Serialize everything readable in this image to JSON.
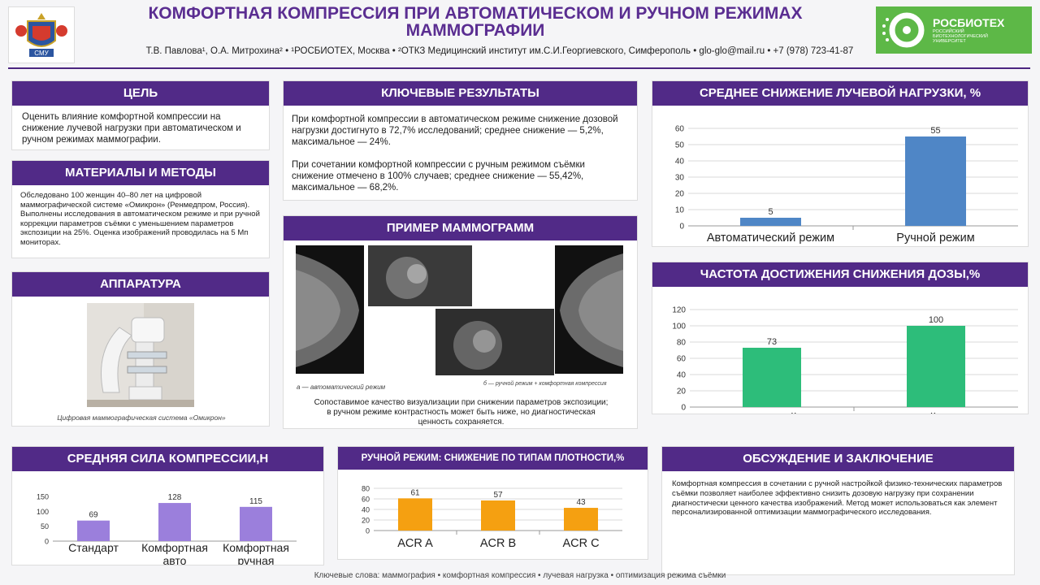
{
  "header": {
    "logo_left_text": "СМУ",
    "title_line1": "КОМФОРТНАЯ КОМПРЕССИЯ ПРИ АВТОМАТИЧЕСКОМ И РУЧНОМ РЕЖИМАХ",
    "title_line2": "МАММОГРАФИИ",
    "authors": "Т.В. Павлова¹, О.А. Митрохина² • ¹РОСБИОТЕХ, Москва • ²ОТКЗ Медицинский институт им.С.И.Георгиевского, Симферополь • glo-glo@mail.ru • +7 (978) 723-41-87",
    "logo_right_name": "РОСБИОТЕХ",
    "logo_right_sub": "РОССИЙСКИЙ БИОТЕХНОЛОГИЧЕСКИЙ УНИВЕРСИТЕТ"
  },
  "goal": {
    "title": "ЦЕЛЬ",
    "text": "Оценить влияние комфортной компрессии на снижение лучевой нагрузки при автоматическом и ручном режимах маммографии."
  },
  "methods": {
    "title": "МАТЕРИАЛЫ И МЕТОДЫ",
    "text": "Обследовано 100 женщин 40–80 лет на цифровой маммографической системе «Омикрон» (Ренмедпром, Россия). Выполнены исследования в автоматическом режиме и при ручной коррекции параметров съёмки с уменьшением параметров экспозиции на 25%. Оценка изображений проводилась на 5 Мп мониторах."
  },
  "equipment": {
    "title": "АППАРАТУРА",
    "caption": "Цифровая маммографическая система «Омикрон»"
  },
  "results": {
    "title": "КЛЮЧЕВЫЕ РЕЗУЛЬТАТЫ",
    "p1": "При комфортной компрессии в автоматическом режиме снижение дозовой нагрузки достигнуто в 72,7% исследований; среднее снижение — 5,2%, максимальное — 24%.",
    "p2": "При сочетании комфортной компрессии с ручным режимом съёмки снижение отмечено в 100% случаев; среднее снижение — 55,42%, максимальное — 68,2%."
  },
  "mammograms": {
    "title": "ПРИМЕР МАММОГРАММ",
    "caption_a": "а — автоматический режим",
    "caption_b": "б — ручной режим + комфортная компрессия",
    "note_line1": "Сопоставимое качество визуализации при снижении параметров экспозиции;",
    "note_line2": "в ручном режиме контрастность может быть ниже, но диагностическая",
    "note_line3": "ценность сохраняется."
  },
  "discussion": {
    "title": "ОБСУЖДЕНИЕ И ЗАКЛЮЧЕНИЕ",
    "text": "Комфортная компрессия в сочетании с ручной настройкой физико-технических параметров съёмки позволяет наиболее эффективно снизить дозовую нагрузку при сохранении диагностически ценного качества изображений. Метод может использоваться как элемент персонализированной оптимизации маммографического исследования."
  },
  "footer": "Ключевые слова: маммография • комфортная компрессия • лучевая нагрузка • оптимизация режима съёмки",
  "colors": {
    "purple": "#512a87",
    "blue": "#4f86c6",
    "green": "#2dbd7a",
    "violet": "#9b7fdc",
    "orange": "#f5a011"
  },
  "chart_data": [
    {
      "id": "dose",
      "type": "bar",
      "title": "СРЕДНЕЕ СНИЖЕНИЕ ЛУЧЕВОЙ НАГРУЗКИ, %",
      "categories": [
        "Автоматический режим",
        "Ручной режим"
      ],
      "values": [
        5,
        55
      ],
      "ylim": [
        0,
        60
      ],
      "yticks": [
        0,
        10,
        20,
        30,
        40,
        50,
        60
      ],
      "color": "#4f86c6",
      "grid": true
    },
    {
      "id": "freq",
      "type": "bar",
      "title": "ЧАСТОТА ДОСТИЖЕНИЯ СНИЖЕНИЯ ДОЗЫ,%",
      "categories": [
        "Автоматический режим",
        "Ручной режим"
      ],
      "values": [
        73,
        100
      ],
      "ylim": [
        0,
        120
      ],
      "yticks": [
        0,
        20,
        40,
        60,
        80,
        100,
        120
      ],
      "color": "#2dbd7a",
      "grid": true
    },
    {
      "id": "force",
      "type": "bar",
      "title": "СРЕДНЯЯ СИЛА КОМПРЕССИИ,Н",
      "categories": [
        "Стандарт",
        "Комфортная авто",
        "Комфортная ручная"
      ],
      "values": [
        69,
        128,
        115
      ],
      "ylim": [
        0,
        150
      ],
      "yticks": [
        0,
        50,
        100,
        150
      ],
      "color": "#9b7fdc",
      "grid": false
    },
    {
      "id": "density",
      "type": "bar",
      "title": "РУЧНОЙ РЕЖИМ: СНИЖЕНИЕ ПО ТИПАМ ПЛОТНОСТИ,%",
      "categories": [
        "ACR A",
        "ACR B",
        "ACR C"
      ],
      "values": [
        61,
        57,
        43
      ],
      "ylim": [
        0,
        80
      ],
      "yticks": [
        0,
        20,
        40,
        60,
        80
      ],
      "color": "#f5a011",
      "grid": true
    }
  ]
}
